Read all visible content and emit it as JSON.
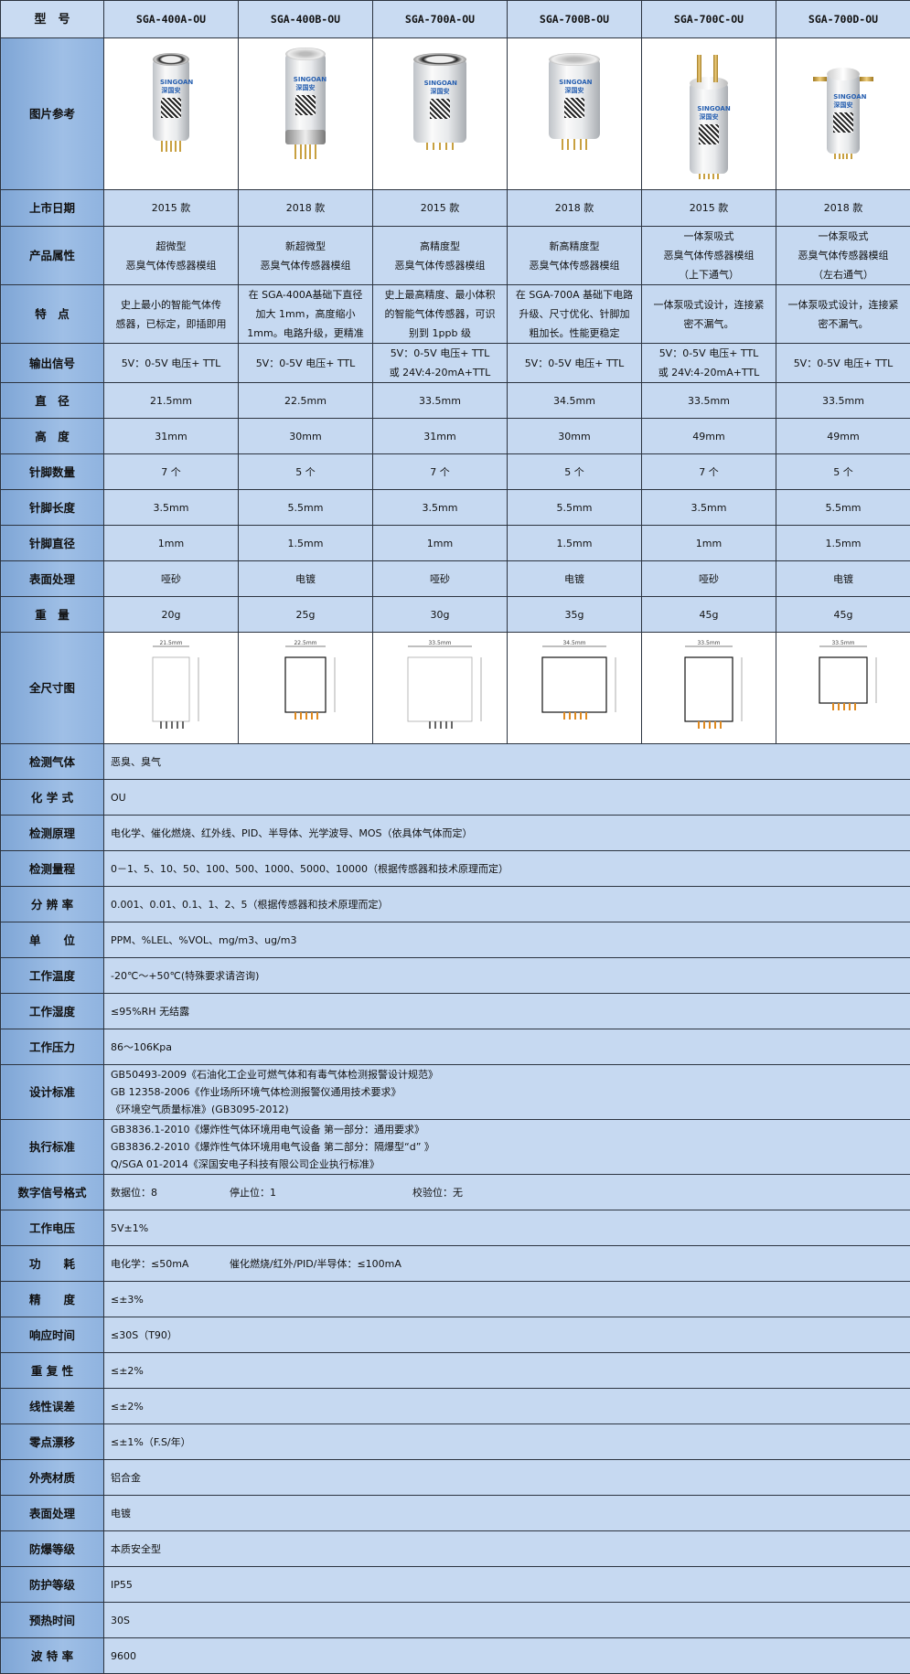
{
  "header": {
    "label": "型　号",
    "models": [
      "SGA-400A-OU",
      "SGA-400B-OU",
      "SGA-700A-OU",
      "SGA-700B-OU",
      "SGA-700C-OU",
      "SGA-700D-OU"
    ]
  },
  "image_row": {
    "label": "图片参考",
    "brand": "SINGOAN",
    "brand_cn": "深国安",
    "product_text": "智能型气体传感器模组"
  },
  "spec_rows": [
    {
      "label": "上市日期",
      "values": [
        [
          "2015 款"
        ],
        [
          "2018 款"
        ],
        [
          "2015 款"
        ],
        [
          "2018 款"
        ],
        [
          "2015 款"
        ],
        [
          "2018 款"
        ]
      ]
    },
    {
      "label": "产品属性",
      "values": [
        [
          "超微型",
          "恶臭气体传感器模组"
        ],
        [
          "新超微型",
          "恶臭气体传感器模组"
        ],
        [
          "高精度型",
          "恶臭气体传感器模组"
        ],
        [
          "新高精度型",
          "恶臭气体传感器模组"
        ],
        [
          "一体泵吸式",
          "恶臭气体传感器模组",
          "（上下通气）"
        ],
        [
          "一体泵吸式",
          "恶臭气体传感器模组",
          "（左右通气）"
        ]
      ]
    },
    {
      "label": "特　点",
      "values": [
        [
          "史上最小的智能气体传",
          "感器，已标定，即插即用"
        ],
        [
          "在 SGA-400A基础下直径",
          "加大 1mm，高度缩小",
          "1mm。电路升级，更精准"
        ],
        [
          "史上最高精度、最小体积",
          "的智能气体传感器，可识",
          "别到 1ppb 级"
        ],
        [
          "在 SGA-700A 基础下电路",
          "升级、尺寸优化、针脚加",
          "粗加长。性能更稳定"
        ],
        [
          "一体泵吸式设计，连接紧",
          "密不漏气。"
        ],
        [
          "一体泵吸式设计，连接紧",
          "密不漏气。"
        ]
      ]
    },
    {
      "label": "输出信号",
      "values": [
        [
          "5V：0-5V 电压+ TTL"
        ],
        [
          "5V：0-5V 电压+ TTL"
        ],
        [
          "5V：0-5V 电压+ TTL",
          "或 24V:4-20mA+TTL"
        ],
        [
          "5V：0-5V 电压+ TTL"
        ],
        [
          "5V：0-5V 电压+ TTL",
          "或 24V:4-20mA+TTL"
        ],
        [
          "5V：0-5V 电压+ TTL"
        ]
      ]
    },
    {
      "label": "直　径",
      "values": [
        [
          "21.5mm"
        ],
        [
          "22.5mm"
        ],
        [
          "33.5mm"
        ],
        [
          "34.5mm"
        ],
        [
          "33.5mm"
        ],
        [
          "33.5mm"
        ]
      ]
    },
    {
      "label": "高　度",
      "values": [
        [
          "31mm"
        ],
        [
          "30mm"
        ],
        [
          "31mm"
        ],
        [
          "30mm"
        ],
        [
          "49mm"
        ],
        [
          "49mm"
        ]
      ]
    },
    {
      "label": "针脚数量",
      "values": [
        [
          "7 个"
        ],
        [
          "5 个"
        ],
        [
          "7 个"
        ],
        [
          "5 个"
        ],
        [
          "7 个"
        ],
        [
          "5 个"
        ]
      ]
    },
    {
      "label": "针脚长度",
      "values": [
        [
          "3.5mm"
        ],
        [
          "5.5mm"
        ],
        [
          "3.5mm"
        ],
        [
          "5.5mm"
        ],
        [
          "3.5mm"
        ],
        [
          "5.5mm"
        ]
      ]
    },
    {
      "label": "针脚直径",
      "values": [
        [
          "1mm"
        ],
        [
          "1.5mm"
        ],
        [
          "1mm"
        ],
        [
          "1.5mm"
        ],
        [
          "1mm"
        ],
        [
          "1.5mm"
        ]
      ]
    },
    {
      "label": "表面处理",
      "values": [
        [
          "哑砂"
        ],
        [
          "电镀"
        ],
        [
          "哑砂"
        ],
        [
          "电镀"
        ],
        [
          "哑砂"
        ],
        [
          "电镀"
        ]
      ]
    },
    {
      "label": "重　量",
      "values": [
        [
          "20g"
        ],
        [
          "25g"
        ],
        [
          "30g"
        ],
        [
          "35g"
        ],
        [
          "45g"
        ],
        [
          "45g"
        ]
      ]
    }
  ],
  "dimension_row": {
    "label": "全尺寸图",
    "diameters": [
      "21.5mm",
      "22.5mm",
      "33.5mm",
      "34.5mm",
      "33.5mm",
      "33.5mm"
    ]
  },
  "common_rows": [
    {
      "label": "检测气体",
      "lines": [
        "恶臭、臭气"
      ]
    },
    {
      "label": "化 学 式",
      "lines": [
        "OU"
      ]
    },
    {
      "label": "检测原理",
      "lines": [
        "电化学、催化燃烧、红外线、PID、半导体、光学波导、MOS（依具体气体而定）"
      ]
    },
    {
      "label": "检测量程",
      "lines": [
        "0－1、5、10、50、100、500、1000、5000、10000（根据传感器和技术原理而定）"
      ]
    },
    {
      "label": "分 辨 率",
      "lines": [
        "0.001、0.01、0.1、1、2、5（根据传感器和技术原理而定）"
      ]
    },
    {
      "label": "单　　位",
      "lines": [
        "PPM、%LEL、%VOL、mg/m3、ug/m3"
      ]
    },
    {
      "label": "工作温度",
      "lines": [
        "-20℃～+50℃(特殊要求请咨询)"
      ]
    },
    {
      "label": "工作湿度",
      "lines": [
        "≤95%RH 无结露"
      ]
    },
    {
      "label": "工作压力",
      "lines": [
        "86～106Kpa"
      ]
    },
    {
      "label": "设计标准",
      "lines": [
        "GB50493-2009《石油化工企业可燃气体和有毒气体检测报警设计规范》",
        "GB 12358-2006《作业场所环境气体检测报警仪通用技术要求》",
        "《环境空气质量标准》(GB3095-2012)"
      ]
    },
    {
      "label": "执行标准",
      "lines": [
        "GB3836.1-2010《爆炸性气体环境用电气设备 第一部分：通用要求》",
        "GB3836.2-2010《爆炸性气体环境用电气设备 第二部分：隔爆型“d” 》",
        "Q/SGA 01-2014《深国安电子科技有限公司企业执行标准》"
      ]
    },
    {
      "label": "数字信号格式",
      "parts": [
        "数据位：8",
        "停止位：1",
        "校验位：无"
      ]
    },
    {
      "label": "工作电压",
      "lines": [
        "5V±1%"
      ]
    },
    {
      "label": "功　　耗",
      "parts": [
        "电化学：≤50mA",
        "催化燃烧/红外/PID/半导体：≤100mA"
      ]
    },
    {
      "label": "精　　度",
      "lines": [
        "≤±3%"
      ]
    },
    {
      "label": "响应时间",
      "lines": [
        "≤30S（T90）"
      ]
    },
    {
      "label": "重 复 性",
      "lines": [
        "≤±2%"
      ]
    },
    {
      "label": "线性误差",
      "lines": [
        "≤±2%"
      ]
    },
    {
      "label": "零点漂移",
      "lines": [
        "≤±1%（F.S/年）"
      ]
    },
    {
      "label": "外壳材质",
      "lines": [
        "铝合金"
      ]
    },
    {
      "label": "表面处理",
      "lines": [
        "电镀"
      ]
    },
    {
      "label": "防爆等级",
      "lines": [
        "本质安全型"
      ]
    },
    {
      "label": "防护等级",
      "lines": [
        "IP55"
      ]
    },
    {
      "label": "预热时间",
      "lines": [
        "30S"
      ]
    },
    {
      "label": "波 特 率",
      "lines": [
        "9600"
      ]
    }
  ],
  "colors": {
    "label_column": "#8fb3df",
    "cell": "#c6d9f1",
    "border": "#2c3440"
  }
}
